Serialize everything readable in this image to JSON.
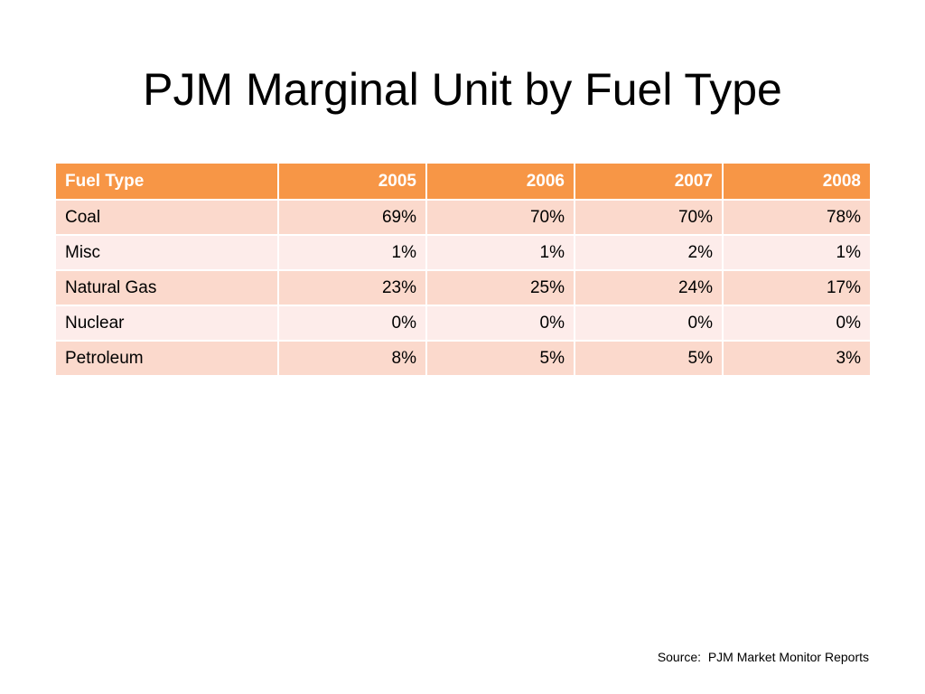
{
  "slide": {
    "title": "PJM Marginal Unit by Fuel Type",
    "source": "Source:  PJM Market Monitor Reports"
  },
  "colors": {
    "header_bg": "#f79646",
    "header_text": "#ffffff",
    "row_band_1": "#fbd9cc",
    "row_band_2": "#fdecea"
  },
  "table": {
    "headers": [
      "Fuel Type",
      "2005",
      "2006",
      "2007",
      "2008"
    ],
    "rows": [
      [
        "Coal",
        "69%",
        "70%",
        "70%",
        "78%"
      ],
      [
        "Misc",
        "1%",
        "1%",
        "2%",
        "1%"
      ],
      [
        "Natural Gas",
        "23%",
        "25%",
        "24%",
        "17%"
      ],
      [
        "Nuclear",
        "0%",
        "0%",
        "0%",
        "0%"
      ],
      [
        "Petroleum",
        "8%",
        "5%",
        "5%",
        "3%"
      ]
    ]
  }
}
